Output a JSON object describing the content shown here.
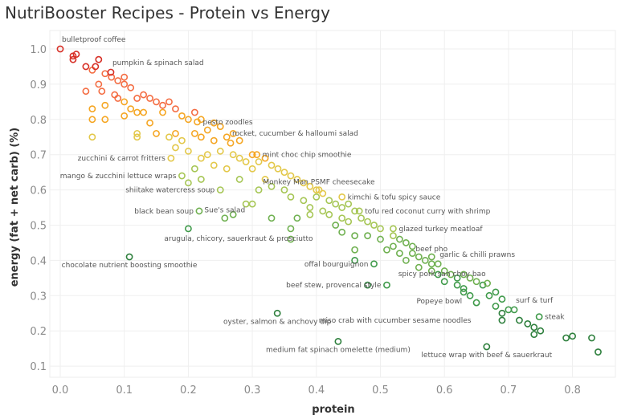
{
  "chart_data": {
    "type": "scatter",
    "title": "NutriBooster Recipes - Protein vs Energy",
    "xlabel": "protein",
    "ylabel": "energy (fat + net carb) (%)",
    "xlim": [
      -0.01,
      0.86
    ],
    "ylim": [
      0.08,
      1.05
    ],
    "x_ticks": [
      "0.0",
      "0.1",
      "0.2",
      "0.3",
      "0.4",
      "0.5",
      "0.6",
      "0.7",
      "0.8"
    ],
    "y_ticks": [
      "0.1",
      "0.2",
      "0.3",
      "0.4",
      "0.5",
      "0.6",
      "0.7",
      "0.8",
      "0.9",
      "1.0"
    ],
    "grid": true,
    "marker": "hollow-circle",
    "color_scale": [
      "#d73027",
      "#f46d43",
      "#f5a623",
      "#e3c84a",
      "#a6c655",
      "#6fb050",
      "#3f9a4a",
      "#2d7f3c"
    ],
    "labeled_points": [
      {
        "label": "bulletproof coffee",
        "x": 0.0,
        "y": 1.0,
        "label_pos": "above-right"
      },
      {
        "label": "pumpkin & spinach salad",
        "x": 0.079,
        "y": 0.934,
        "label_pos": "above-right"
      },
      {
        "label": "pesto zoodles",
        "x": 0.214,
        "y": 0.793,
        "label_pos": "right"
      },
      {
        "label": "rocket, cucumber & halloumi salad",
        "x": 0.266,
        "y": 0.733,
        "label_pos": "above-right"
      },
      {
        "label": "mint choc chip smoothie",
        "x": 0.307,
        "y": 0.7,
        "label_pos": "right"
      },
      {
        "label": "zucchini & carrot fritters",
        "x": 0.173,
        "y": 0.69,
        "label_pos": "left"
      },
      {
        "label": "mango & zucchini lettuce wraps",
        "x": 0.19,
        "y": 0.64,
        "label_pos": "left"
      },
      {
        "label": "shiitake watercress soup",
        "x": 0.25,
        "y": 0.6,
        "label_pos": "left"
      },
      {
        "label": "Sue's salad",
        "x": 0.257,
        "y": 0.52,
        "label_pos": "above"
      },
      {
        "label": "black bean soup",
        "x": 0.217,
        "y": 0.54,
        "label_pos": "left"
      },
      {
        "label": "arugula, chicory, sauerkraut & prosciutto",
        "x": 0.2,
        "y": 0.49,
        "label_pos": "below-right"
      },
      {
        "label": "chocolate nutrient boosting smoothie",
        "x": 0.108,
        "y": 0.41,
        "label_pos": "below"
      },
      {
        "label": "Monkey Man PSMF cheesecake",
        "x": 0.404,
        "y": 0.6,
        "label_pos": "above"
      },
      {
        "label": "kimchi & tofu spicy sauce",
        "x": 0.44,
        "y": 0.58,
        "label_pos": "right"
      },
      {
        "label": "tofu red coconut curry with shrimp",
        "x": 0.467,
        "y": 0.54,
        "label_pos": "right"
      },
      {
        "label": "glazed turkey meatloaf",
        "x": 0.52,
        "y": 0.49,
        "label_pos": "right"
      },
      {
        "label": "beef pho",
        "x": 0.58,
        "y": 0.41,
        "label_pos": "above"
      },
      {
        "label": "garlic & chilli prawns",
        "x": 0.59,
        "y": 0.39,
        "label_pos": "above-right"
      },
      {
        "label": "spicy pork  san choy bao",
        "x": 0.667,
        "y": 0.335,
        "label_pos": "above-left"
      },
      {
        "label": "offal bourguignon",
        "x": 0.49,
        "y": 0.39,
        "label_pos": "left"
      },
      {
        "label": "beef stew, provencal style",
        "x": 0.51,
        "y": 0.33,
        "label_pos": "left"
      },
      {
        "label": "Popeye bowl",
        "x": 0.63,
        "y": 0.31,
        "label_pos": "below-left"
      },
      {
        "label": "surf & turf",
        "x": 0.709,
        "y": 0.26,
        "label_pos": "above-right"
      },
      {
        "label": "steak",
        "x": 0.748,
        "y": 0.24,
        "label_pos": "right"
      },
      {
        "label": "miso crab with cucumber sesame noodles",
        "x": 0.717,
        "y": 0.23,
        "label_pos": "far-left"
      },
      {
        "label": "oyster, salmon & anchovy dip",
        "x": 0.339,
        "y": 0.25,
        "label_pos": "below"
      },
      {
        "label": "medium fat spinach omelette (medium)",
        "x": 0.434,
        "y": 0.17,
        "label_pos": "below"
      },
      {
        "label": "lettuce wrap with beef & sauerkraut",
        "x": 0.666,
        "y": 0.155,
        "label_pos": "below"
      }
    ],
    "points": [
      [
        0.02,
        0.98
      ],
      [
        0.025,
        0.985
      ],
      [
        0.02,
        0.97
      ],
      [
        0.04,
        0.95
      ],
      [
        0.05,
        0.94
      ],
      [
        0.06,
        0.97
      ],
      [
        0.055,
        0.95
      ],
      [
        0.07,
        0.93
      ],
      [
        0.04,
        0.88
      ],
      [
        0.06,
        0.9
      ],
      [
        0.065,
        0.88
      ],
      [
        0.05,
        0.83
      ],
      [
        0.05,
        0.8
      ],
      [
        0.07,
        0.8
      ],
      [
        0.05,
        0.75
      ],
      [
        0.08,
        0.92
      ],
      [
        0.09,
        0.91
      ],
      [
        0.1,
        0.92
      ],
      [
        0.1,
        0.9
      ],
      [
        0.11,
        0.89
      ],
      [
        0.085,
        0.87
      ],
      [
        0.09,
        0.86
      ],
      [
        0.07,
        0.84
      ],
      [
        0.1,
        0.85
      ],
      [
        0.12,
        0.86
      ],
      [
        0.13,
        0.87
      ],
      [
        0.14,
        0.86
      ],
      [
        0.15,
        0.85
      ],
      [
        0.16,
        0.84
      ],
      [
        0.17,
        0.85
      ],
      [
        0.11,
        0.83
      ],
      [
        0.12,
        0.82
      ],
      [
        0.1,
        0.81
      ],
      [
        0.13,
        0.82
      ],
      [
        0.16,
        0.82
      ],
      [
        0.18,
        0.83
      ],
      [
        0.19,
        0.81
      ],
      [
        0.2,
        0.8
      ],
      [
        0.21,
        0.82
      ],
      [
        0.22,
        0.8
      ],
      [
        0.24,
        0.79
      ],
      [
        0.23,
        0.77
      ],
      [
        0.25,
        0.78
      ],
      [
        0.12,
        0.76
      ],
      [
        0.12,
        0.75
      ],
      [
        0.14,
        0.79
      ],
      [
        0.15,
        0.76
      ],
      [
        0.17,
        0.75
      ],
      [
        0.18,
        0.76
      ],
      [
        0.19,
        0.74
      ],
      [
        0.21,
        0.76
      ],
      [
        0.22,
        0.75
      ],
      [
        0.24,
        0.74
      ],
      [
        0.26,
        0.75
      ],
      [
        0.27,
        0.76
      ],
      [
        0.28,
        0.74
      ],
      [
        0.18,
        0.72
      ],
      [
        0.2,
        0.71
      ],
      [
        0.22,
        0.69
      ],
      [
        0.23,
        0.7
      ],
      [
        0.25,
        0.71
      ],
      [
        0.27,
        0.7
      ],
      [
        0.28,
        0.69
      ],
      [
        0.29,
        0.68
      ],
      [
        0.3,
        0.7
      ],
      [
        0.31,
        0.68
      ],
      [
        0.32,
        0.69
      ],
      [
        0.3,
        0.66
      ],
      [
        0.33,
        0.67
      ],
      [
        0.34,
        0.66
      ],
      [
        0.35,
        0.65
      ],
      [
        0.36,
        0.64
      ],
      [
        0.32,
        0.63
      ],
      [
        0.33,
        0.61
      ],
      [
        0.37,
        0.63
      ],
      [
        0.38,
        0.62
      ],
      [
        0.39,
        0.61
      ],
      [
        0.4,
        0.6
      ],
      [
        0.41,
        0.59
      ],
      [
        0.35,
        0.6
      ],
      [
        0.36,
        0.58
      ],
      [
        0.38,
        0.57
      ],
      [
        0.4,
        0.58
      ],
      [
        0.42,
        0.57
      ],
      [
        0.43,
        0.56
      ],
      [
        0.44,
        0.55
      ],
      [
        0.45,
        0.56
      ],
      [
        0.46,
        0.54
      ],
      [
        0.39,
        0.55
      ],
      [
        0.41,
        0.54
      ],
      [
        0.42,
        0.53
      ],
      [
        0.44,
        0.52
      ],
      [
        0.45,
        0.51
      ],
      [
        0.47,
        0.52
      ],
      [
        0.48,
        0.51
      ],
      [
        0.49,
        0.5
      ],
      [
        0.5,
        0.49
      ],
      [
        0.43,
        0.5
      ],
      [
        0.44,
        0.48
      ],
      [
        0.46,
        0.47
      ],
      [
        0.48,
        0.47
      ],
      [
        0.5,
        0.46
      ],
      [
        0.52,
        0.47
      ],
      [
        0.53,
        0.46
      ],
      [
        0.54,
        0.45
      ],
      [
        0.55,
        0.44
      ],
      [
        0.51,
        0.43
      ],
      [
        0.52,
        0.44
      ],
      [
        0.53,
        0.42
      ],
      [
        0.55,
        0.42
      ],
      [
        0.56,
        0.41
      ],
      [
        0.57,
        0.4
      ],
      [
        0.58,
        0.39
      ],
      [
        0.54,
        0.4
      ],
      [
        0.56,
        0.38
      ],
      [
        0.58,
        0.37
      ],
      [
        0.59,
        0.36
      ],
      [
        0.6,
        0.37
      ],
      [
        0.61,
        0.36
      ],
      [
        0.62,
        0.35
      ],
      [
        0.63,
        0.36
      ],
      [
        0.64,
        0.35
      ],
      [
        0.6,
        0.34
      ],
      [
        0.62,
        0.33
      ],
      [
        0.63,
        0.32
      ],
      [
        0.65,
        0.34
      ],
      [
        0.66,
        0.33
      ],
      [
        0.67,
        0.3
      ],
      [
        0.68,
        0.31
      ],
      [
        0.69,
        0.29
      ],
      [
        0.64,
        0.3
      ],
      [
        0.65,
        0.28
      ],
      [
        0.68,
        0.27
      ],
      [
        0.69,
        0.25
      ],
      [
        0.69,
        0.23
      ],
      [
        0.7,
        0.26
      ],
      [
        0.73,
        0.22
      ],
      [
        0.74,
        0.21
      ],
      [
        0.75,
        0.2
      ],
      [
        0.74,
        0.19
      ],
      [
        0.79,
        0.18
      ],
      [
        0.8,
        0.185
      ],
      [
        0.83,
        0.18
      ],
      [
        0.84,
        0.14
      ],
      [
        0.29,
        0.56
      ],
      [
        0.3,
        0.56
      ],
      [
        0.36,
        0.49
      ],
      [
        0.39,
        0.53
      ],
      [
        0.37,
        0.52
      ],
      [
        0.27,
        0.53
      ],
      [
        0.31,
        0.6
      ],
      [
        0.33,
        0.52
      ],
      [
        0.28,
        0.63
      ],
      [
        0.26,
        0.66
      ],
      [
        0.24,
        0.67
      ],
      [
        0.21,
        0.66
      ],
      [
        0.22,
        0.63
      ],
      [
        0.2,
        0.62
      ],
      [
        0.36,
        0.46
      ],
      [
        0.46,
        0.43
      ],
      [
        0.46,
        0.4
      ],
      [
        0.48,
        0.33
      ]
    ]
  }
}
